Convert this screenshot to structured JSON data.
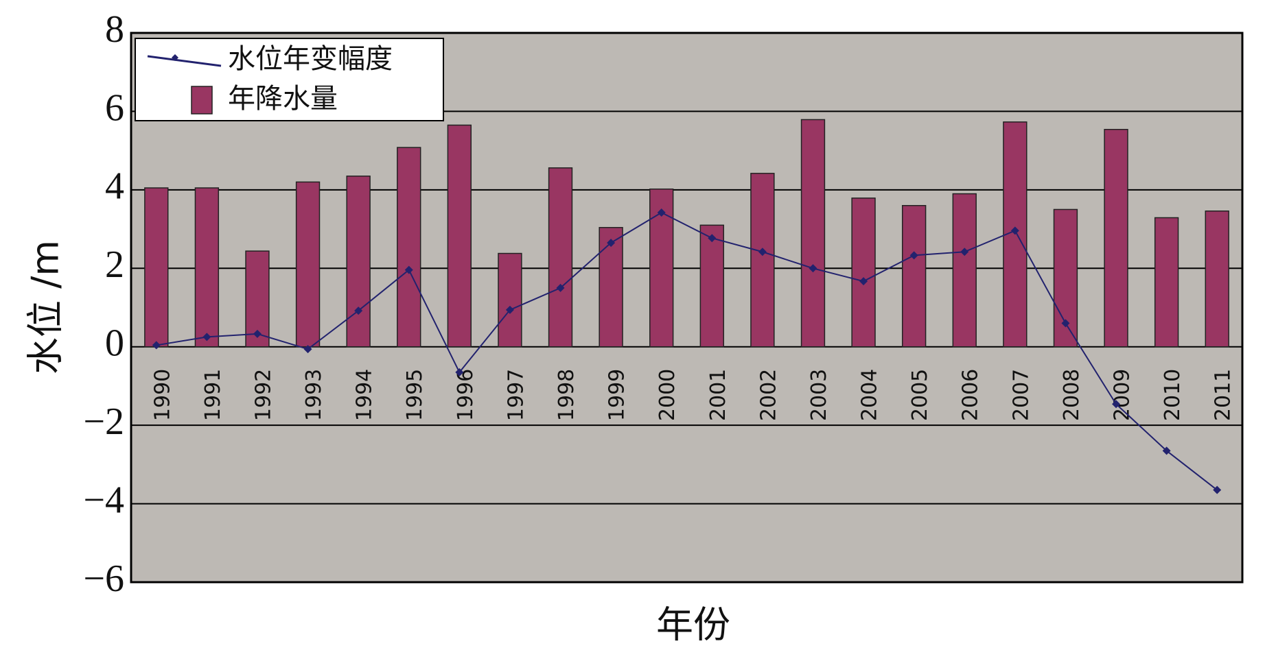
{
  "chart_data": {
    "type": "bar",
    "x_label": "年份",
    "y_label": "水位 /m",
    "categories": [
      "1990",
      "1991",
      "1992",
      "1993",
      "1994",
      "1995",
      "1996",
      "1997",
      "1998",
      "1999",
      "2000",
      "2001",
      "2002",
      "2003",
      "2004",
      "2005",
      "2006",
      "2007",
      "2008",
      "2009",
      "2010",
      "2011"
    ],
    "series": [
      {
        "name": "水位年变幅度",
        "type": "line",
        "color": "#22226e",
        "values": [
          0.04,
          0.25,
          0.33,
          -0.06,
          0.92,
          1.96,
          -0.65,
          0.94,
          1.5,
          2.65,
          3.42,
          2.77,
          2.42,
          2.0,
          1.67,
          2.33,
          2.42,
          2.96,
          0.6,
          -1.46,
          -2.65,
          -3.65
        ]
      },
      {
        "name": "年降水量",
        "type": "bar",
        "color": "#993662",
        "values": [
          4.05,
          4.05,
          2.44,
          4.2,
          4.35,
          5.08,
          5.65,
          2.38,
          4.56,
          3.04,
          4.02,
          3.1,
          4.42,
          5.79,
          3.79,
          3.6,
          3.9,
          5.73,
          3.5,
          5.54,
          3.29,
          3.46
        ]
      }
    ],
    "ylim": [
      -6,
      8
    ],
    "yticks": [
      {
        "value": -6,
        "label": "−6"
      },
      {
        "value": -4,
        "label": "−4"
      },
      {
        "value": -2,
        "label": "−2"
      },
      0,
      2,
      4,
      6,
      8
    ],
    "grid": true,
    "legend": "upper-left",
    "background": "#bdb9b4"
  }
}
